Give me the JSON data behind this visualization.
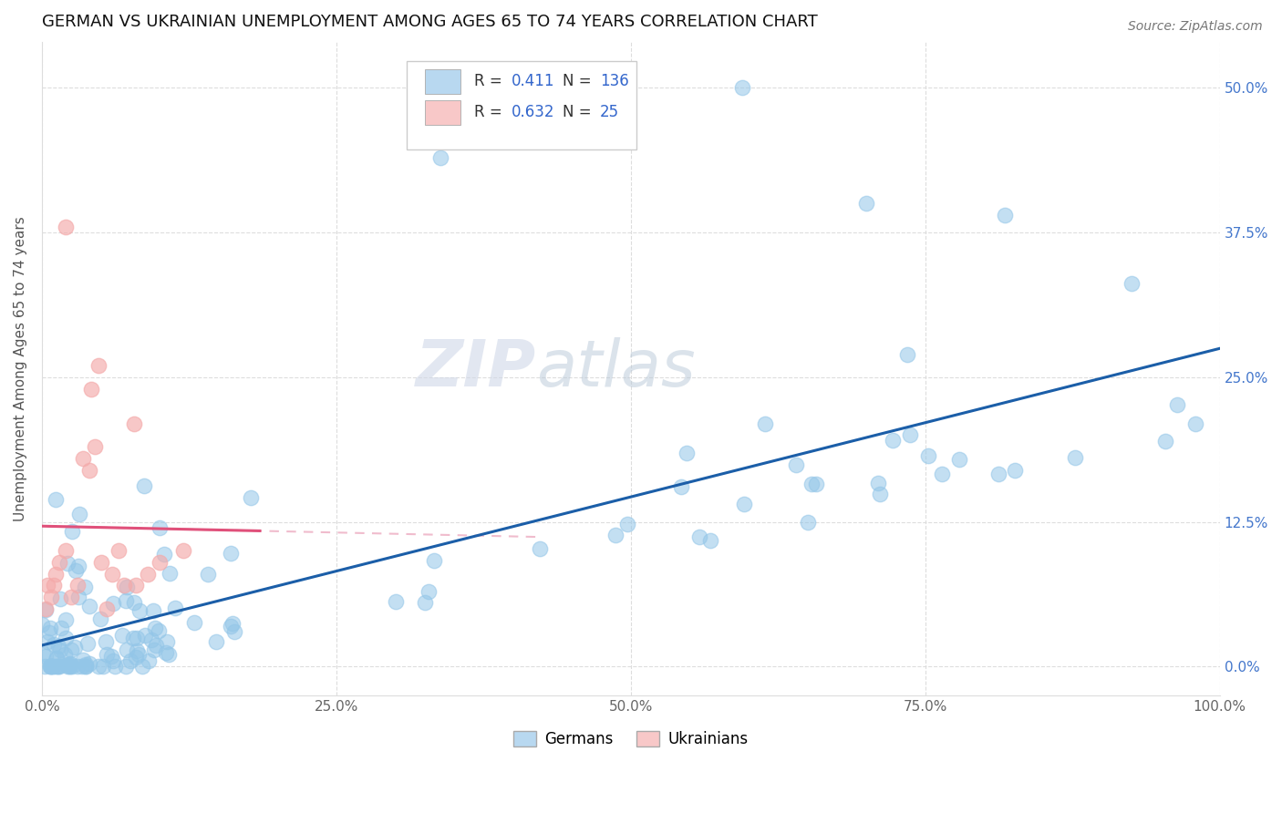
{
  "title": "GERMAN VS UKRAINIAN UNEMPLOYMENT AMONG AGES 65 TO 74 YEARS CORRELATION CHART",
  "source": "Source: ZipAtlas.com",
  "ylabel": "Unemployment Among Ages 65 to 74 years",
  "xlim": [
    0.0,
    1.0
  ],
  "ylim": [
    -0.025,
    0.54
  ],
  "x_ticks": [
    0.0,
    0.25,
    0.5,
    0.75,
    1.0
  ],
  "x_tick_labels": [
    "0.0%",
    "25.0%",
    "50.0%",
    "75.0%",
    "100.0%"
  ],
  "y_ticks": [
    0.0,
    0.125,
    0.25,
    0.375,
    0.5
  ],
  "y_tick_labels": [
    "0.0%",
    "12.5%",
    "25.0%",
    "37.5%",
    "50.0%"
  ],
  "german_color": "#93C6E8",
  "ukrainian_color": "#F4AAAA",
  "german_line_color": "#1B5EA8",
  "ukrainian_line_color": "#E0507A",
  "ukrainian_dashed_color": "#EAA0B8",
  "legend_box_color_german": "#B8D8F0",
  "legend_box_color_ukrainian": "#F8C8C8",
  "r_german": 0.411,
  "n_german": 136,
  "r_ukrainian": 0.632,
  "n_ukrainian": 25,
  "background_color": "#ffffff",
  "grid_color": "#dddddd",
  "watermark": "ZIPatlas",
  "title_fontsize": 13,
  "axis_label_fontsize": 11,
  "tick_fontsize": 11,
  "right_tick_color": "#4477CC"
}
